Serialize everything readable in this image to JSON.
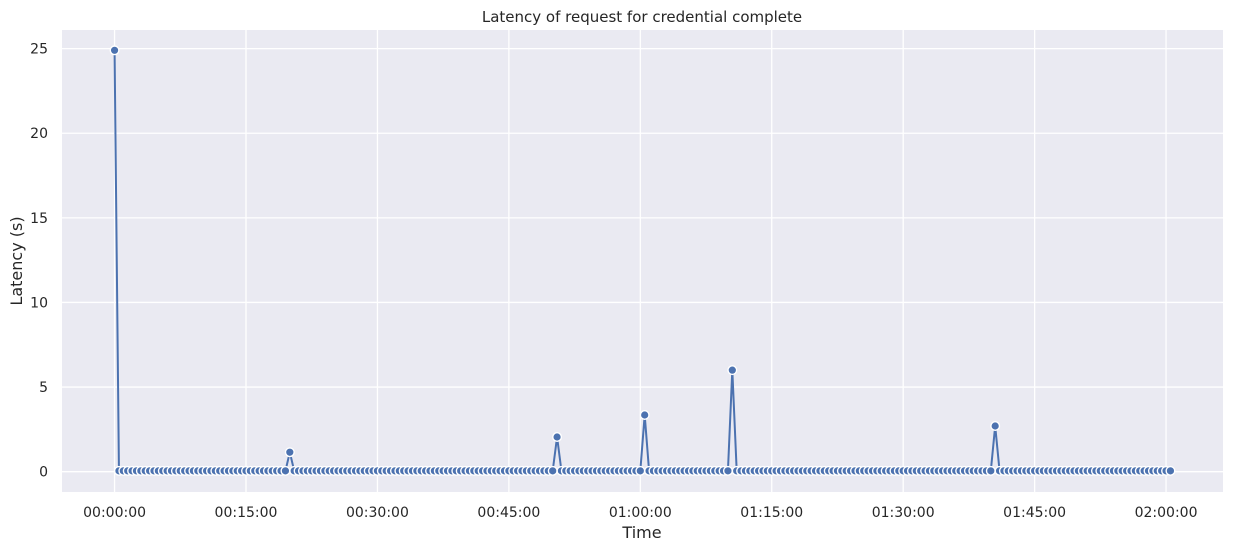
{
  "chart_data": {
    "type": "line",
    "title": "Latency of request for credential complete",
    "xlabel": "Time",
    "ylabel": "Latency (s)",
    "x_ticks": [
      "00:00:00",
      "00:15:00",
      "00:30:00",
      "00:45:00",
      "01:00:00",
      "01:15:00",
      "01:30:00",
      "01:45:00",
      "02:00:00"
    ],
    "y_ticks": [
      "0",
      "5",
      "10",
      "15",
      "20",
      "25"
    ],
    "xlim": [
      "-00:06:00",
      "02:06:30"
    ],
    "ylim": [
      -1.2,
      26.1
    ],
    "grid": true,
    "sample_interval": "00:00:30",
    "baseline_latency": 0.05,
    "series": [
      {
        "color": "#4c72b0",
        "x_start": "00:00:00",
        "x_end": "02:00:30",
        "spikes": [
          {
            "x": "00:00:00",
            "y": 24.9
          },
          {
            "x": "00:20:00",
            "y": 1.15
          },
          {
            "x": "00:50:30",
            "y": 2.05
          },
          {
            "x": "01:00:30",
            "y": 3.35
          },
          {
            "x": "01:10:30",
            "y": 6.0
          },
          {
            "x": "01:40:30",
            "y": 2.7
          }
        ]
      }
    ]
  }
}
